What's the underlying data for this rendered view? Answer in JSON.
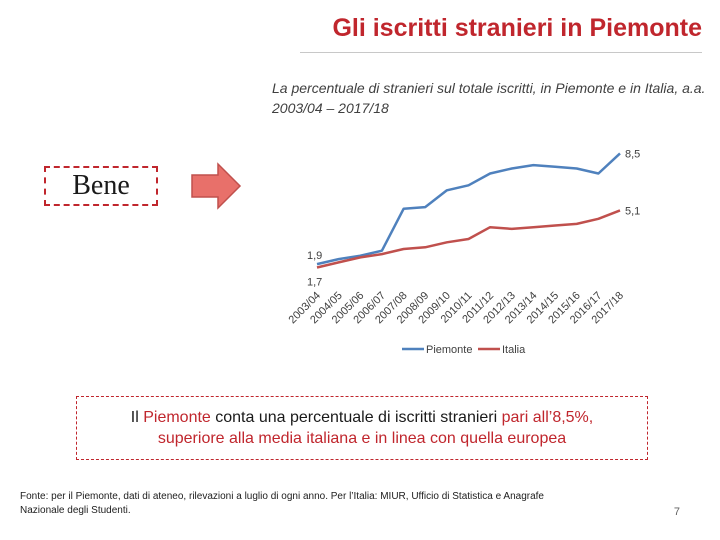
{
  "slide": {
    "title": "Gli iscritti stranieri in Piemonte",
    "bene_label": "Bene",
    "statement": {
      "p1": "Il ",
      "p2": "Piemonte",
      "p3": " conta una percentuale di iscritti stranieri ",
      "p4": "pari all’8,5%,",
      "p5": "superiore alla media italiana e in linea con quella europea"
    },
    "footer": "Fonte: per il Piemonte, dati di ateneo, rilevazioni a luglio di ogni anno. Per l’Italia: MIUR, Ufficio di Statistica e Anagrafe Nazionale degli Studenti.",
    "page_number": "7",
    "colors": {
      "title": "#c0262d",
      "arrow": "#e8706a",
      "piemonte": "#4f81bd",
      "italia": "#c0504d"
    }
  },
  "chart_data": {
    "type": "line",
    "title": "La percentuale di stranieri sul totale iscritti, in Piemonte e in Italia, a.a. 2003/04 – 2017/18",
    "categories": [
      "2003/04",
      "2004/05",
      "2005/06",
      "2006/07",
      "2007/08",
      "2008/09",
      "2009/10",
      "2010/11",
      "2011/12",
      "2012/13",
      "2013/14",
      "2014/15",
      "2015/16",
      "2016/17",
      "2017/18"
    ],
    "series": [
      {
        "name": "Piemonte",
        "values": [
          1.9,
          2.2,
          2.4,
          2.7,
          5.2,
          5.3,
          6.3,
          6.6,
          7.3,
          7.6,
          7.8,
          7.7,
          7.6,
          7.3,
          8.5
        ],
        "start_label": "1,9",
        "end_label": "8,5"
      },
      {
        "name": "Italia",
        "values": [
          1.7,
          2.0,
          2.3,
          2.5,
          2.8,
          2.9,
          3.2,
          3.4,
          4.1,
          4.0,
          4.1,
          4.2,
          4.3,
          4.6,
          5.1
        ],
        "start_label": "1,7",
        "end_label": "5,1"
      }
    ],
    "ylim": [
      0,
      9
    ],
    "grid": false,
    "legend_position": "bottom"
  }
}
